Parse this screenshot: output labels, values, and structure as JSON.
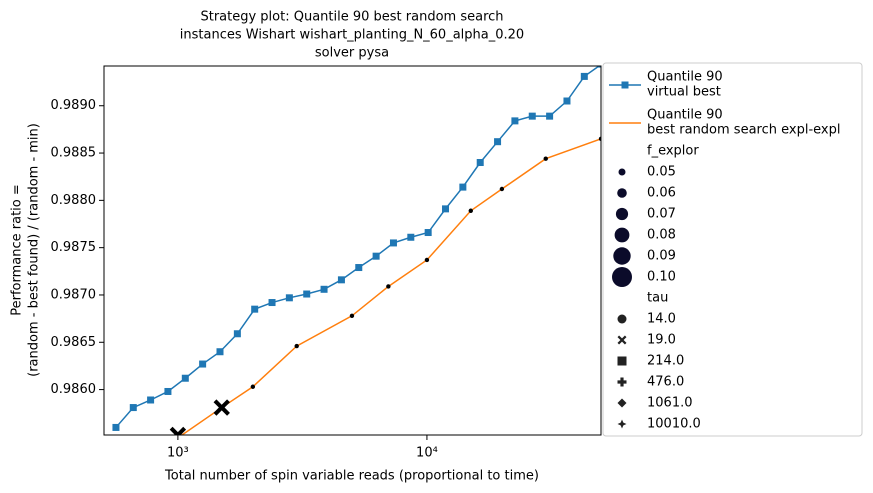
{
  "chart_data": {
    "type": "line",
    "title": [
      "Strategy plot: Quantile 90 best random search",
      "instances Wishart wishart_planting_N_60_alpha_0.20",
      "solver pysa"
    ],
    "xlabel": "Total number of spin variable reads (proportional to time)",
    "ylabel": [
      "Performance ratio =",
      "(random - best found) / (random - min)"
    ],
    "xscale": "log",
    "xlim": [
      505,
      50000
    ],
    "ylim": [
      0.98552,
      0.98942
    ],
    "xticks": [
      {
        "value": 1000,
        "label": "10³"
      },
      {
        "value": 10000,
        "label": "10⁴"
      }
    ],
    "yticks": [
      {
        "value": 0.986,
        "label": "0.9860"
      },
      {
        "value": 0.9865,
        "label": "0.9865"
      },
      {
        "value": 0.987,
        "label": "0.9870"
      },
      {
        "value": 0.9875,
        "label": "0.9875"
      },
      {
        "value": 0.988,
        "label": "0.9880"
      },
      {
        "value": 0.9885,
        "label": "0.9885"
      },
      {
        "value": 0.989,
        "label": "0.9890"
      }
    ],
    "series": [
      {
        "name": [
          "Quantile 90",
          " virtual best"
        ],
        "color": "#1f77b4",
        "marker": "s",
        "x": [
          564,
          662,
          777,
          912,
          1071,
          1257,
          1476,
          1733,
          2034,
          2388,
          2803,
          3291,
          3863,
          4536,
          5325,
          6251,
          7339,
          8616,
          10115,
          11875,
          13941,
          16367,
          19214,
          22557,
          26482,
          31090,
          36500,
          42851,
          50306
        ],
        "values": [
          0.9856,
          0.98581,
          0.98589,
          0.98598,
          0.98612,
          0.98627,
          0.9864,
          0.98659,
          0.98685,
          0.98692,
          0.98697,
          0.98701,
          0.98706,
          0.98716,
          0.98729,
          0.98741,
          0.98755,
          0.98761,
          0.98766,
          0.98791,
          0.98814,
          0.9884,
          0.98862,
          0.98884,
          0.98889,
          0.98889,
          0.98905,
          0.98931,
          0.98944
        ]
      },
      {
        "name": [
          "Quantile 90",
          " best random search expl-expl"
        ],
        "color": "#ff7f0e",
        "x": [
          1000,
          1500,
          2000,
          3000,
          5000,
          7000,
          10000,
          15000,
          20000,
          30000,
          50000
        ],
        "values": [
          0.98549,
          0.98581,
          0.98603,
          0.98646,
          0.98678,
          0.98709,
          0.98737,
          0.98789,
          0.98812,
          0.98844,
          0.98865
        ]
      }
    ],
    "scatter": {
      "color": "#000000",
      "x": [
        1000,
        1500,
        2000,
        3000,
        5000,
        7000,
        10000,
        15000,
        20000,
        30000,
        50000
      ],
      "values": [
        0.98552,
        0.98581,
        0.98603,
        0.98646,
        0.98678,
        0.98709,
        0.98737,
        0.98789,
        0.98812,
        0.98844,
        0.98865
      ],
      "sizes": [
        0.1,
        0.1,
        0.05,
        0.05,
        0.05,
        0.05,
        0.05,
        0.05,
        0.05,
        0.05,
        0.05
      ],
      "markers": [
        "X",
        "X",
        "o",
        "o",
        "o",
        "o",
        "o",
        "o",
        "o",
        "o",
        "o"
      ]
    },
    "legend": {
      "loc": "outside right",
      "size_title": "f_explor",
      "size_labels": [
        "0.05",
        "0.06",
        "0.07",
        "0.08",
        "0.09",
        "0.10"
      ],
      "marker_title": "tau",
      "marker_labels": [
        "14.0",
        "19.0",
        "214.0",
        "476.0",
        "1061.0",
        "10010.0"
      ],
      "marker_shapes": [
        "o",
        "X",
        "s",
        "P",
        "D",
        "*"
      ]
    }
  }
}
